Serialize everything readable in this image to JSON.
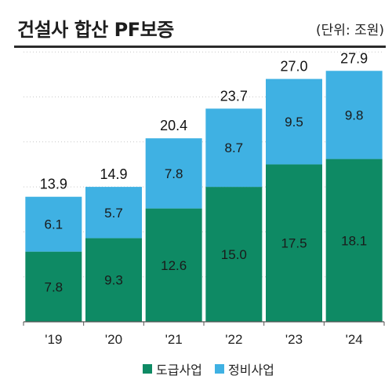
{
  "header": {
    "title": "건설사 합산 PF보증",
    "unit": "(단위: 조원)"
  },
  "colors": {
    "series1": "#0e8a64",
    "series2": "#3fb1e3",
    "grid": "#c8c8c8",
    "axis": "#555555"
  },
  "chart_data": {
    "type": "bar",
    "stacked": true,
    "title": "건설사 합산 PF보증",
    "unit": "(단위: 조원)",
    "categories": [
      "'19",
      "'20",
      "'21",
      "'22",
      "'23",
      "'24"
    ],
    "series": [
      {
        "name": "도급사업",
        "values": [
          7.8,
          9.3,
          12.6,
          15.0,
          17.5,
          18.1
        ]
      },
      {
        "name": "정비사업",
        "values": [
          6.1,
          5.7,
          7.8,
          8.7,
          9.5,
          9.8
        ]
      }
    ],
    "totals": [
      "13.9",
      "14.9",
      "20.4",
      "23.7",
      "27.0",
      "27.9"
    ],
    "value_labels": [
      [
        "7.8",
        "9.3",
        "12.6",
        "15.0",
        "17.5",
        "18.1"
      ],
      [
        "6.1",
        "5.7",
        "7.8",
        "8.7",
        "9.5",
        "9.8"
      ]
    ],
    "ylim": [
      0,
      30
    ],
    "grid": true,
    "legend_position": "bottom-center"
  }
}
